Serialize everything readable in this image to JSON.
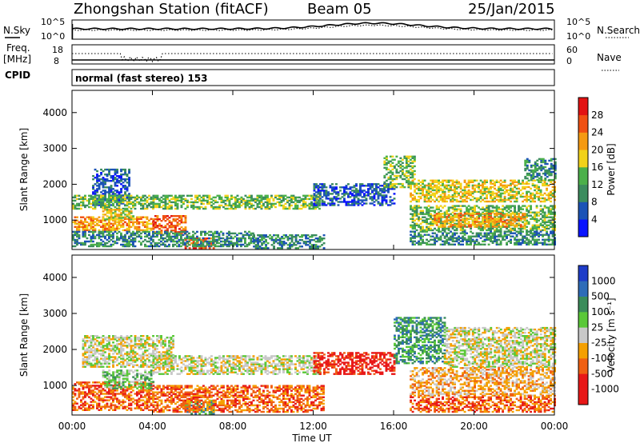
{
  "header": {
    "station": "Zhongshan Station (fitACF)",
    "beam": "Beam 05",
    "date": "25/Jan/2015"
  },
  "strip": {
    "left_top": "N.Sky",
    "left_freq_1": "Freq.",
    "left_freq_2": "[MHz]",
    "left_cpid": "CPID",
    "right_top": "N.Search",
    "right_nave": "Nave",
    "sky_ticks": [
      "10^5",
      "10^0"
    ],
    "search_ticks": [
      "10^5",
      "10^0"
    ],
    "freq_ticks": [
      "18",
      "8"
    ],
    "nave_ticks": [
      "60",
      "0"
    ],
    "cpid_text": "normal (fast stereo) 153"
  },
  "chart_data": [
    {
      "type": "heatmap",
      "title": "",
      "xlabel": "Time UT",
      "ylabel": "Slant Range [km]",
      "x_tick_labels": [
        "00:00",
        "04:00",
        "08:00",
        "12:00",
        "16:00",
        "20:00",
        "00:00"
      ],
      "x_hours": [
        0,
        4,
        8,
        12,
        16,
        20,
        24
      ],
      "y_ticks": [
        1000,
        2000,
        3000,
        4000
      ],
      "ylim": [
        180,
        4620
      ],
      "colorbar": {
        "label": "Power [dB]",
        "tick_labels": [
          "4",
          "8",
          "12",
          "16",
          "20",
          "24",
          "28"
        ],
        "colors": [
          "#0a14ff",
          "#1b53b6",
          "#3b8c5e",
          "#4bb04a",
          "#f2d21a",
          "#f59a12",
          "#f05012",
          "#e21212"
        ]
      },
      "echo_regions": [
        {
          "t0": 1.0,
          "t1": 2.8,
          "r0": 1400,
          "r1": 2400,
          "level": 1
        },
        {
          "t0": 0.0,
          "t1": 4.0,
          "r0": 1300,
          "r1": 1700,
          "level": 3
        },
        {
          "t0": 4.0,
          "t1": 12.3,
          "r0": 1300,
          "r1": 1700,
          "level": 3
        },
        {
          "t0": 0.0,
          "t1": 4.0,
          "r0": 700,
          "r1": 1100,
          "level": 5
        },
        {
          "t0": 4.0,
          "t1": 5.6,
          "r0": 600,
          "r1": 1100,
          "level": 6
        },
        {
          "t0": 5.6,
          "t1": 7.0,
          "r0": 200,
          "r1": 500,
          "level": 6
        },
        {
          "t0": 1.5,
          "t1": 3.0,
          "r0": 1000,
          "r1": 1300,
          "level": 4
        },
        {
          "t0": 0.0,
          "t1": 9.0,
          "r0": 250,
          "r1": 700,
          "level": 2
        },
        {
          "t0": 9.0,
          "t1": 12.5,
          "r0": 200,
          "r1": 600,
          "level": 2
        },
        {
          "t0": 12.0,
          "t1": 16.0,
          "r0": 1400,
          "r1": 2000,
          "level": 1
        },
        {
          "t0": 15.5,
          "t1": 17.0,
          "r0": 1900,
          "r1": 2800,
          "level": 3
        },
        {
          "t0": 16.8,
          "t1": 24.0,
          "r0": 1500,
          "r1": 2100,
          "level": 4
        },
        {
          "t0": 16.8,
          "t1": 24.0,
          "r0": 700,
          "r1": 1400,
          "level": 3
        },
        {
          "t0": 18.0,
          "t1": 22.5,
          "r0": 800,
          "r1": 1200,
          "level": 5
        },
        {
          "t0": 16.8,
          "t1": 24.0,
          "r0": 300,
          "r1": 700,
          "level": 2
        },
        {
          "t0": 22.5,
          "t1": 24.0,
          "r0": 2100,
          "r1": 2700,
          "level": 2
        }
      ]
    },
    {
      "type": "heatmap",
      "title": "",
      "xlabel": "Time UT",
      "ylabel": "Slant Range [km]",
      "x_tick_labels": [
        "00:00",
        "04:00",
        "08:00",
        "12:00",
        "16:00",
        "20:00",
        "00:00"
      ],
      "x_hours": [
        0,
        4,
        8,
        12,
        16,
        20,
        24
      ],
      "y_ticks": [
        1000,
        2000,
        3000,
        4000
      ],
      "ylim": [
        180,
        4620
      ],
      "colorbar": {
        "label": "Velocity [m s⁻¹]",
        "tick_labels": [
          "1000",
          "500",
          "100",
          "25",
          "-25",
          "-100",
          "-500",
          "-1000"
        ],
        "colors": [
          "#1e3cc8",
          "#2e6cb8",
          "#3a8c5a",
          "#5ac838",
          "#c8c8c8",
          "#f5a000",
          "#f06012",
          "#e81818",
          "#e81818"
        ]
      },
      "echo_regions": [
        {
          "t0": 0.5,
          "t1": 5.0,
          "r0": 1500,
          "r1": 2400,
          "level": 4
        },
        {
          "t0": 4.0,
          "t1": 12.3,
          "r0": 1300,
          "r1": 1800,
          "level": 4
        },
        {
          "t0": 0.0,
          "t1": 4.0,
          "r0": 300,
          "r1": 1100,
          "level": 2
        },
        {
          "t0": 1.5,
          "t1": 4.0,
          "r0": 900,
          "r1": 1400,
          "level": 5
        },
        {
          "t0": 5.6,
          "t1": 7.0,
          "r0": 200,
          "r1": 600,
          "level": 6
        },
        {
          "t0": 4.0,
          "t1": 12.5,
          "r0": 250,
          "r1": 1000,
          "level": 2
        },
        {
          "t0": 12.0,
          "t1": 16.0,
          "r0": 1300,
          "r1": 1900,
          "level": 1
        },
        {
          "t0": 16.0,
          "t1": 18.5,
          "r0": 1600,
          "r1": 2900,
          "level": 6
        },
        {
          "t0": 18.5,
          "t1": 24.0,
          "r0": 1500,
          "r1": 2600,
          "level": 4
        },
        {
          "t0": 16.8,
          "t1": 24.0,
          "r0": 700,
          "r1": 1500,
          "level": 3
        },
        {
          "t0": 16.8,
          "t1": 24.0,
          "r0": 250,
          "r1": 700,
          "level": 2
        }
      ]
    }
  ]
}
